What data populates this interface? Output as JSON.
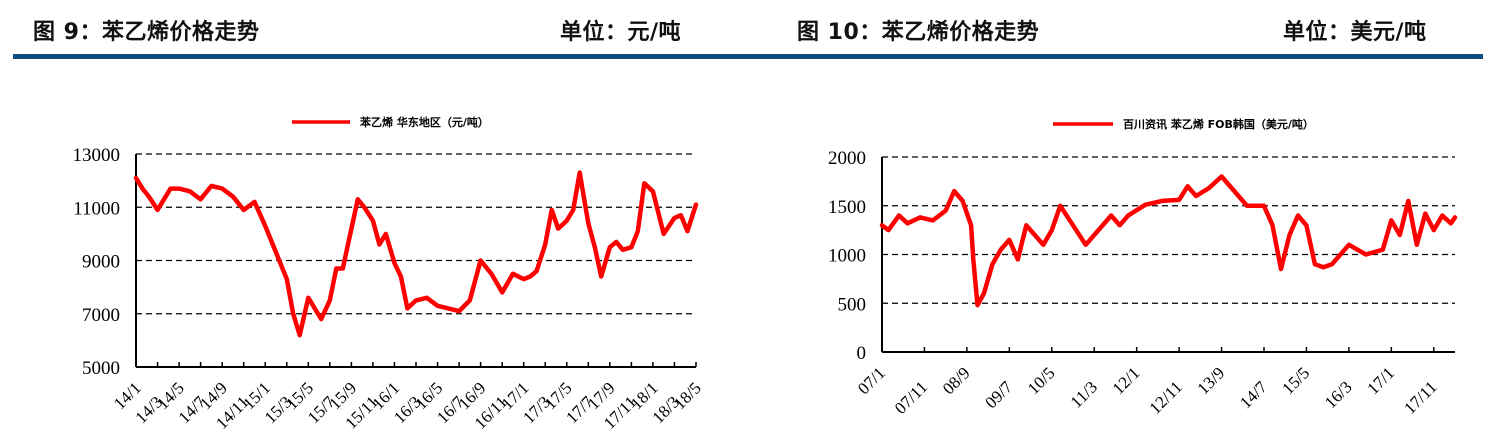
{
  "headers": {
    "left_title": "图 9：苯乙烯价格走势",
    "left_unit": "单位：元/吨",
    "right_title": "图 10：苯乙烯价格走势",
    "right_unit": "单位：美元/吨"
  },
  "colors": {
    "rule": "#0d4d80",
    "series": "#ff0000",
    "grid": "#000000"
  },
  "chart_data": [
    {
      "type": "line",
      "title": "图 9：苯乙烯价格走势",
      "unit": "单位：元/吨",
      "legend": "苯乙烯 华东地区（元/吨）",
      "legend_position": "top",
      "ylim": [
        5000,
        13000
      ],
      "yticks": [
        "13000",
        "11000",
        "9000",
        "7000",
        "5000"
      ],
      "grid": "horizontal dashed",
      "xticks": [
        "14/1",
        "14/3",
        "14/5",
        "14/7",
        "14/9",
        "14/11",
        "15/1",
        "15/3",
        "15/5",
        "15/7",
        "15/9",
        "15/11",
        "16/1",
        "16/3",
        "16/5",
        "16/7",
        "16/9",
        "16/11",
        "17/1",
        "17/3",
        "17/5",
        "17/7",
        "17/9",
        "17/11",
        "18/1",
        "18/3",
        "18/5"
      ],
      "x": [
        0,
        0.3,
        0.6,
        1,
        1.3,
        1.6,
        2,
        2.5,
        3,
        3.5,
        4,
        4.5,
        5,
        5.5,
        6,
        6.5,
        7,
        7.3,
        7.6,
        8,
        8.3,
        8.6,
        9,
        9.3,
        9.6,
        10,
        10.3,
        10.6,
        11,
        11.3,
        11.6,
        12,
        12.3,
        12.6,
        13,
        13.5,
        14,
        14.5,
        15,
        15.5,
        16,
        16.5,
        17,
        17.5,
        18,
        18.3,
        18.6,
        19,
        19.3,
        19.6,
        20,
        20.3,
        20.6,
        21,
        21.3,
        21.6,
        22,
        22.3,
        22.6,
        23,
        23.3,
        23.6,
        24,
        24.5,
        25,
        25.3,
        25.6,
        26
      ],
      "values": [
        12100,
        11700,
        11400,
        10900,
        11300,
        11700,
        11700,
        11600,
        11300,
        11800,
        11700,
        11400,
        10900,
        11200,
        10300,
        9300,
        8300,
        7000,
        6200,
        7600,
        7200,
        6800,
        7500,
        8700,
        8700,
        10200,
        11300,
        11000,
        10500,
        9600,
        10000,
        8900,
        8400,
        7200,
        7500,
        7600,
        7300,
        7200,
        7100,
        7500,
        9000,
        8500,
        7800,
        8500,
        8300,
        8400,
        8600,
        9600,
        10900,
        10200,
        10500,
        10900,
        12300,
        10400,
        9500,
        8400,
        9500,
        9700,
        9400,
        9500,
        10100,
        11900,
        11600,
        10000,
        10600,
        10700,
        10100,
        11100
      ]
    },
    {
      "type": "line",
      "title": "图 10：苯乙烯价格走势",
      "unit": "单位：美元/吨",
      "legend": "百川资讯 苯乙烯 FOB韩国（美元/吨）",
      "legend_position": "top",
      "ylim": [
        0,
        2000
      ],
      "yticks": [
        "2000",
        "1500",
        "1000",
        "500",
        "0"
      ],
      "grid": "horizontal dashed",
      "xticks": [
        "07/1",
        "07/11",
        "08/9",
        "09/7",
        "10/5",
        "11/3",
        "12/1",
        "12/11",
        "13/9",
        "14/7",
        "15/5",
        "16/3",
        "17/1",
        "17/11"
      ],
      "x": [
        0,
        0.15,
        0.4,
        0.6,
        0.9,
        1.2,
        1.5,
        1.7,
        1.9,
        2.1,
        2.15,
        2.25,
        2.4,
        2.6,
        2.8,
        3.0,
        3.2,
        3.4,
        3.6,
        3.8,
        4.0,
        4.2,
        4.5,
        4.8,
        5.1,
        5.4,
        5.6,
        5.8,
        6.2,
        6.6,
        7.0,
        7.2,
        7.4,
        7.7,
        8.0,
        8.3,
        8.6,
        9.0,
        9.2,
        9.4,
        9.6,
        9.8,
        10.0,
        10.2,
        10.4,
        10.6,
        11.0,
        11.4,
        11.8,
        12.0,
        12.2,
        12.4,
        12.6,
        12.8,
        13.0,
        13.2,
        13.4,
        13.5
      ],
      "values": [
        1300,
        1250,
        1400,
        1320,
        1380,
        1350,
        1450,
        1650,
        1550,
        1300,
        950,
        480,
        600,
        900,
        1050,
        1150,
        950,
        1300,
        1200,
        1100,
        1250,
        1500,
        1300,
        1100,
        1250,
        1400,
        1300,
        1400,
        1510,
        1550,
        1560,
        1700,
        1600,
        1680,
        1800,
        1650,
        1500,
        1500,
        1300,
        850,
        1200,
        1400,
        1300,
        900,
        870,
        900,
        1100,
        1000,
        1050,
        1350,
        1200,
        1550,
        1100,
        1420,
        1250,
        1400,
        1320,
        1380
      ]
    }
  ]
}
